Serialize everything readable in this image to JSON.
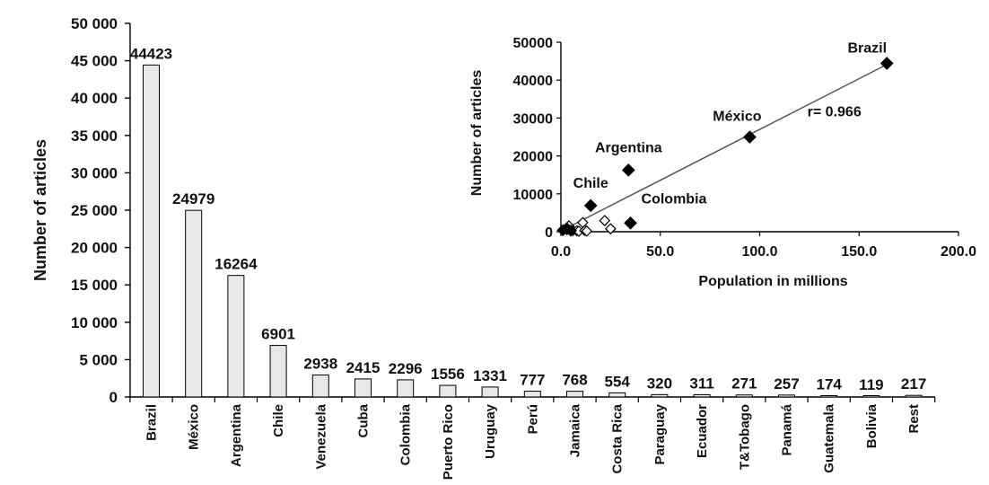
{
  "chart_data": [
    {
      "type": "bar",
      "ylabel": "Number of articles",
      "ylim": [
        0,
        50000
      ],
      "yticks": [
        "0",
        "5 000",
        "10 000",
        "15 000",
        "20 000",
        "25 000",
        "30 000",
        "35 000",
        "40 000",
        "45 000",
        "50 000"
      ],
      "categories": [
        "Brazil",
        "México",
        "Argentina",
        "Chile",
        "Venezuela",
        "Cuba",
        "Colombia",
        "Puerto Rico",
        "Uruguay",
        "Perú",
        "Jamaica",
        "Costa Rica",
        "Paraguay",
        "Ecuador",
        "T&Tobago",
        "Panamá",
        "Guatemala",
        "Bolivia",
        "Rest"
      ],
      "values": [
        44423,
        24979,
        16264,
        6901,
        2938,
        2415,
        2296,
        1556,
        1331,
        777,
        768,
        554,
        320,
        311,
        271,
        257,
        174,
        119,
        217
      ],
      "bar_color": "#e8e8e8",
      "grid": false
    },
    {
      "type": "scatter",
      "xlabel": "Population in millions",
      "ylabel": "Number of articles",
      "xlim": [
        0,
        200
      ],
      "ylim": [
        0,
        50000
      ],
      "xticks": [
        "0.0",
        "50.0",
        "100.0",
        "150.0",
        "200.0"
      ],
      "yticks": [
        "0",
        "10000",
        "20000",
        "30000",
        "40000",
        "50000"
      ],
      "labeled_points": [
        {
          "label": "Brazil",
          "x": 164,
          "y": 44423
        },
        {
          "label": "México",
          "x": 95,
          "y": 24979
        },
        {
          "label": "Argentina",
          "x": 34,
          "y": 16264
        },
        {
          "label": "Chile",
          "x": 15,
          "y": 6901
        },
        {
          "label": "Colombia",
          "x": 35,
          "y": 2296
        }
      ],
      "other_points_filled": [
        {
          "x": 1,
          "y": 400
        },
        {
          "x": 3,
          "y": 900
        },
        {
          "x": 5,
          "y": 300
        }
      ],
      "other_points_open": [
        {
          "x": 3,
          "y": 554
        },
        {
          "x": 4,
          "y": 1556
        },
        {
          "x": 6,
          "y": 320
        },
        {
          "x": 8,
          "y": 257
        },
        {
          "x": 9,
          "y": 119
        },
        {
          "x": 11,
          "y": 2415
        },
        {
          "x": 12,
          "y": 311
        },
        {
          "x": 13,
          "y": 174
        },
        {
          "x": 22,
          "y": 2938
        },
        {
          "x": 25,
          "y": 777
        }
      ],
      "trend_line": {
        "x": [
          0,
          165
        ],
        "y": [
          200,
          44400
        ]
      },
      "annotation": "r= 0.966",
      "grid": false
    }
  ]
}
